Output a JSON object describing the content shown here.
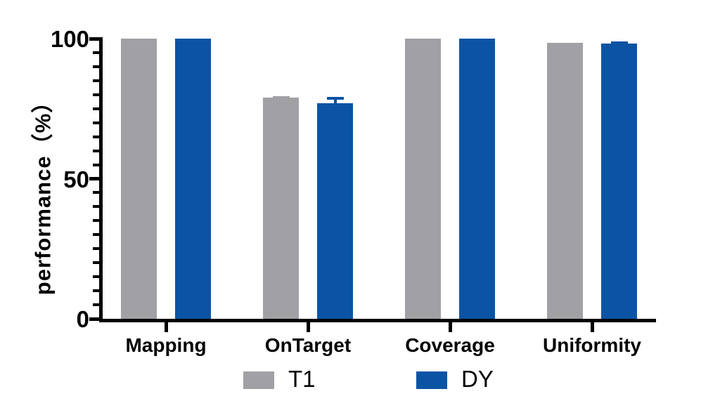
{
  "chart_data": {
    "type": "bar",
    "title": "",
    "ylabel": "performance（%）",
    "xlabel": "",
    "ylim": [
      0,
      100
    ],
    "ytick_values": [
      0,
      50,
      100
    ],
    "ytick_labels": [
      "0",
      "50",
      "100"
    ],
    "minor_tick_step": 5,
    "grid": "off",
    "legend_position": "bottom",
    "categories": [
      "Mapping",
      "OnTarget",
      "Coverage",
      "Uniformity"
    ],
    "series": [
      {
        "name": "T1",
        "color": "#A0A0A5",
        "values": [
          100,
          79,
          100,
          98.5
        ],
        "errors_plus": [
          0,
          0.5,
          0,
          0
        ]
      },
      {
        "name": "DY",
        "color": "#0B54A4",
        "values": [
          100,
          77,
          100,
          98.3
        ],
        "errors_plus": [
          0,
          2.2,
          0,
          0.8
        ]
      }
    ],
    "axis_color": "#000000"
  }
}
